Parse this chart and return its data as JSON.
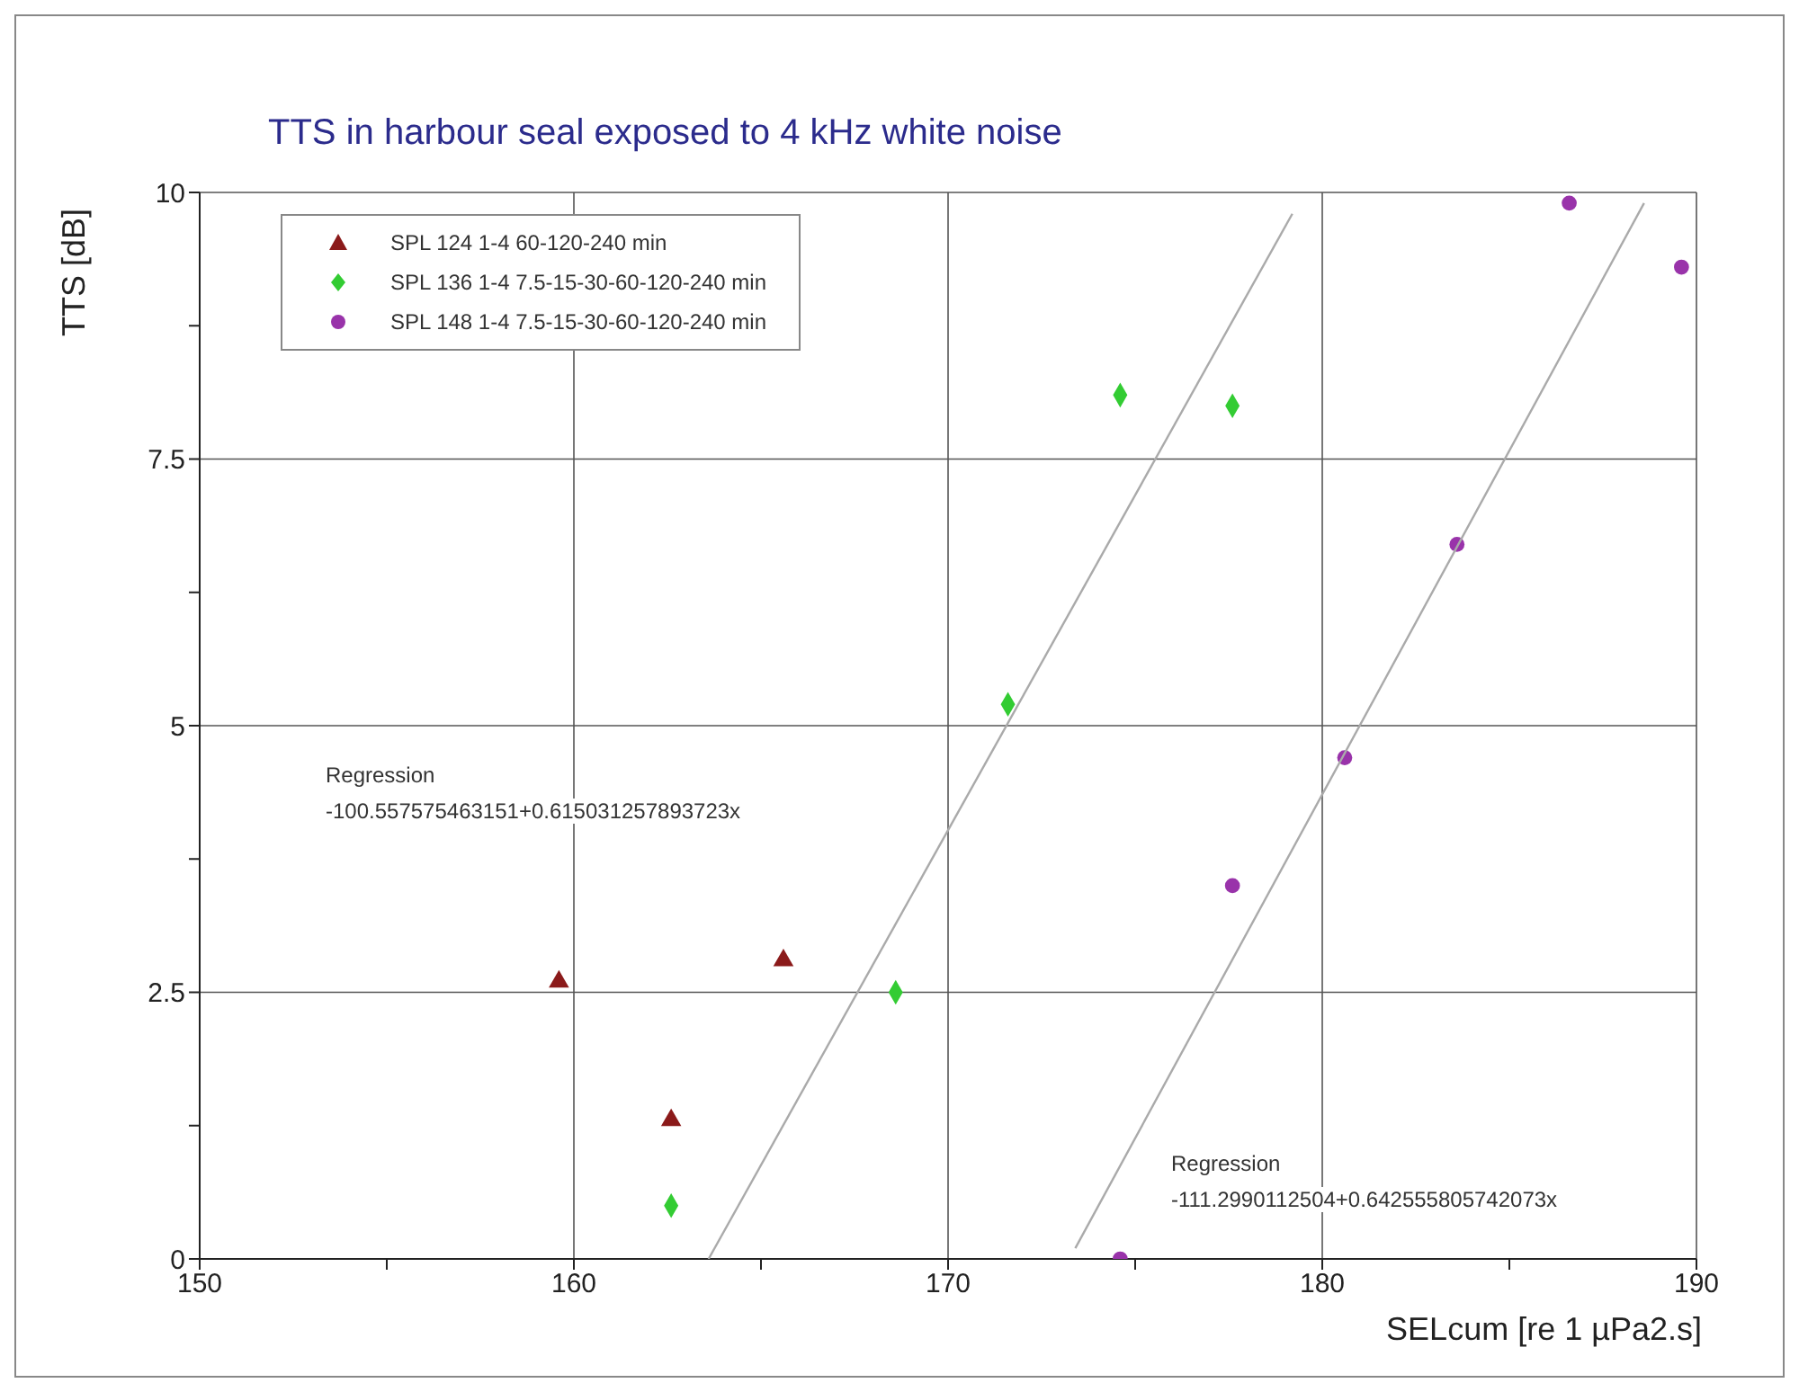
{
  "chart_data": {
    "type": "scatter",
    "title": "TTS in harbour seal exposed to 4 kHz white noise",
    "xlabel": "SELcum [re 1 µPa2.s]",
    "ylabel": "TTS [dB]",
    "xlim": [
      150,
      190
    ],
    "ylim": [
      0,
      10
    ],
    "xticks": [
      150,
      {
        "value": 155,
        "label": null
      },
      160,
      {
        "value": 165,
        "label": null
      },
      170,
      {
        "value": 175,
        "label": null
      },
      180,
      {
        "value": 185,
        "label": null
      },
      190
    ],
    "yticks": [
      0,
      {
        "value": 1.25,
        "label": null
      },
      2.5,
      {
        "value": 3.75,
        "label": null
      },
      5,
      {
        "value": 6.25,
        "label": null
      },
      7.5,
      {
        "value": 8.75,
        "label": null
      },
      10
    ],
    "grid": true,
    "legend": "top left",
    "series": [
      {
        "name": "SPL 124 1-4 60-120-240 min",
        "color": "#8b1a1a",
        "marker": "triangle",
        "x": [
          159.6,
          162.6,
          165.6
        ],
        "values": [
          2.6,
          1.3,
          2.8
        ]
      },
      {
        "name": "SPL 136 1-4 7.5-15-30-60-120-240 min",
        "color": "#33cc33",
        "marker": "diamond",
        "x": [
          162.6,
          168.6,
          171.6,
          174.6,
          177.6
        ],
        "values": [
          0.5,
          2.5,
          5.2,
          8.1,
          8.0
        ]
      },
      {
        "name": "SPL 148 1-4 7.5-15-30-60-120-240 min",
        "color": "#9933aa",
        "marker": "circle",
        "x": [
          174.6,
          177.6,
          180.6,
          183.6,
          186.6,
          189.6
        ],
        "values": [
          0,
          3.5,
          4.7,
          6.7,
          9.9,
          9.3
        ]
      },
      {
        "type": "line",
        "color": "#aaaaaa",
        "marker": "none",
        "x": [
          163.6,
          179.2
        ],
        "values": [
          0,
          9.8
        ]
      },
      {
        "type": "line",
        "color": "#aaaaaa",
        "marker": "none",
        "x": [
          173.4,
          188.6
        ],
        "values": [
          0.1,
          9.9
        ]
      }
    ],
    "annotations": [
      "Regression\n-100.557575463151+0.615031257893723x",
      "Regression\n-111.2990112504+0.642555805742073x"
    ]
  }
}
